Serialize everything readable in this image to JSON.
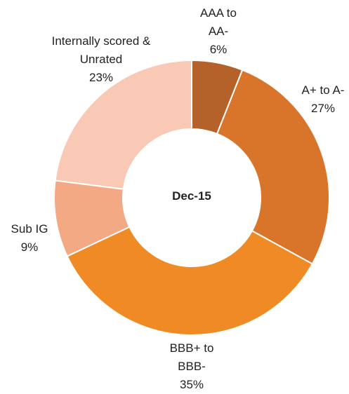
{
  "chart_data": {
    "type": "donut",
    "center_label": "Dec-15",
    "categories": [
      "AAA to AA-",
      "A+ to A-",
      "BBB+ to BBB-",
      "Sub IG",
      "Internally scored & Unrated"
    ],
    "values": [
      6,
      27,
      35,
      9,
      23
    ],
    "value_labels": [
      "6%",
      "27%",
      "35%",
      "9%",
      "23%"
    ],
    "colors": [
      "#b5622a",
      "#d9752a",
      "#f08a24",
      "#f4a985",
      "#f9c9b5"
    ]
  }
}
